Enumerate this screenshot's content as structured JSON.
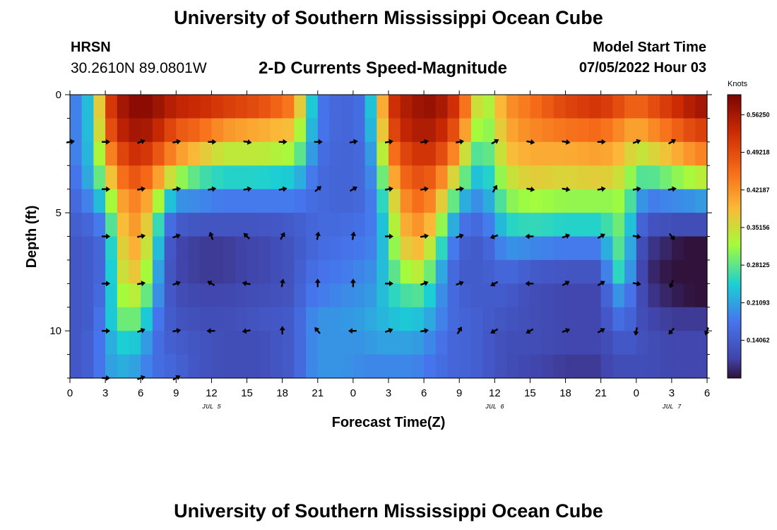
{
  "header": {
    "title": "University of Southern Mississippi Ocean Cube",
    "station_code": "HRSN",
    "station_coords": "30.2610N  89.0801W",
    "plot_title": "2-D Currents Speed-Magnitude",
    "model_start_label": "Model Start Time",
    "model_start_value": "07/05/2022 Hour 03"
  },
  "footer": {
    "title": "University of Southern Mississippi Ocean Cube"
  },
  "chart_data": {
    "type": "heatmap",
    "title": "2-D Currents Speed-Magnitude",
    "xlabel": "Forecast Time(Z)",
    "ylabel": "Depth (ft)",
    "xlim": [
      0,
      54
    ],
    "ylim": [
      12,
      0
    ],
    "x_tick_labels": [
      "0",
      "3",
      "6",
      "9",
      "12",
      "15",
      "18",
      "21",
      "0",
      "3",
      "6",
      "9",
      "12",
      "15",
      "18",
      "21",
      "0",
      "3",
      "6"
    ],
    "date_labels": [
      {
        "text": "JUL 5",
        "hour": 12
      },
      {
        "text": "JUL 6",
        "hour": 36
      },
      {
        "text": "JUL 7",
        "hour": 51
      }
    ],
    "y_ticks": [
      0,
      5,
      10
    ],
    "colorbar": {
      "units": "Knots",
      "ticks": [
        "0.56250",
        "0.49218",
        "0.42187",
        "0.35156",
        "0.28125",
        "0.21093",
        "0.14062"
      ],
      "tick_values": [
        0.5625,
        0.49218,
        0.42187,
        0.35156,
        0.28125,
        0.21093,
        0.14062
      ],
      "range": [
        0.07,
        0.6
      ]
    },
    "depth_layers_ft": [
      0,
      1,
      2,
      3,
      4,
      5,
      6,
      7,
      8,
      9,
      10,
      11,
      12
    ],
    "speed_profiles": [
      [
        0,
        0.17,
        0.17,
        0.17,
        0.16,
        0.15,
        0.14,
        0.13,
        0.13,
        0.13,
        0.13,
        0.13,
        0.13
      ],
      [
        1,
        0.2,
        0.2,
        0.2,
        0.19,
        0.17,
        0.15,
        0.14,
        0.14,
        0.14,
        0.14,
        0.14,
        0.14
      ],
      [
        2,
        0.26,
        0.26,
        0.25,
        0.24,
        0.2,
        0.16,
        0.14,
        0.14,
        0.14,
        0.14,
        0.15,
        0.15
      ],
      [
        3,
        0.48,
        0.45,
        0.4,
        0.33,
        0.26,
        0.2,
        0.17,
        0.17,
        0.18,
        0.2,
        0.2,
        0.2
      ],
      [
        4,
        0.55,
        0.53,
        0.48,
        0.43,
        0.38,
        0.35,
        0.33,
        0.32,
        0.3,
        0.28,
        0.24,
        0.22
      ],
      [
        5,
        0.58,
        0.56,
        0.52,
        0.48,
        0.44,
        0.42,
        0.4,
        0.38,
        0.34,
        0.3,
        0.25,
        0.22
      ],
      [
        6,
        0.59,
        0.57,
        0.53,
        0.48,
        0.43,
        0.41,
        0.39,
        0.37,
        0.33,
        0.28,
        0.23,
        0.2
      ],
      [
        7,
        0.58,
        0.55,
        0.5,
        0.44,
        0.38,
        0.33,
        0.3,
        0.27,
        0.24,
        0.2,
        0.18,
        0.17
      ],
      [
        8,
        0.56,
        0.52,
        0.46,
        0.38,
        0.27,
        0.19,
        0.16,
        0.15,
        0.15,
        0.15,
        0.15,
        0.16
      ],
      [
        9,
        0.54,
        0.48,
        0.42,
        0.32,
        0.2,
        0.14,
        0.11,
        0.11,
        0.12,
        0.13,
        0.14,
        0.15
      ],
      [
        11,
        0.53,
        0.46,
        0.38,
        0.27,
        0.19,
        0.13,
        0.1,
        0.1,
        0.11,
        0.12,
        0.13,
        0.13
      ],
      [
        13,
        0.51,
        0.42,
        0.34,
        0.25,
        0.18,
        0.13,
        0.1,
        0.1,
        0.11,
        0.12,
        0.12,
        0.12
      ],
      [
        16,
        0.49,
        0.4,
        0.34,
        0.25,
        0.18,
        0.13,
        0.11,
        0.11,
        0.12,
        0.13,
        0.12,
        0.12
      ],
      [
        19,
        0.44,
        0.38,
        0.32,
        0.24,
        0.18,
        0.14,
        0.13,
        0.13,
        0.13,
        0.14,
        0.14,
        0.14
      ],
      [
        20,
        0.3,
        0.27,
        0.24,
        0.2,
        0.17,
        0.15,
        0.15,
        0.16,
        0.17,
        0.18,
        0.18,
        0.18
      ],
      [
        21,
        0.18,
        0.18,
        0.17,
        0.16,
        0.16,
        0.16,
        0.16,
        0.17,
        0.18,
        0.2,
        0.2,
        0.2
      ],
      [
        23,
        0.15,
        0.15,
        0.15,
        0.15,
        0.15,
        0.16,
        0.17,
        0.18,
        0.19,
        0.2,
        0.2,
        0.2
      ],
      [
        25,
        0.17,
        0.17,
        0.16,
        0.16,
        0.16,
        0.17,
        0.18,
        0.19,
        0.2,
        0.21,
        0.2,
        0.19
      ],
      [
        26,
        0.3,
        0.28,
        0.25,
        0.22,
        0.2,
        0.19,
        0.19,
        0.2,
        0.21,
        0.22,
        0.21,
        0.19
      ],
      [
        27,
        0.5,
        0.47,
        0.42,
        0.36,
        0.31,
        0.28,
        0.27,
        0.26,
        0.25,
        0.23,
        0.21,
        0.19
      ],
      [
        28,
        0.55,
        0.53,
        0.49,
        0.45,
        0.41,
        0.38,
        0.35,
        0.3,
        0.26,
        0.24,
        0.21,
        0.19
      ],
      [
        29,
        0.56,
        0.55,
        0.51,
        0.48,
        0.45,
        0.42,
        0.39,
        0.34,
        0.28,
        0.24,
        0.21,
        0.19
      ],
      [
        30,
        0.58,
        0.56,
        0.53,
        0.49,
        0.46,
        0.42,
        0.38,
        0.33,
        0.27,
        0.23,
        0.2,
        0.18
      ],
      [
        31,
        0.57,
        0.55,
        0.51,
        0.46,
        0.41,
        0.36,
        0.3,
        0.25,
        0.22,
        0.2,
        0.18,
        0.17
      ],
      [
        32,
        0.55,
        0.52,
        0.47,
        0.4,
        0.33,
        0.26,
        0.21,
        0.18,
        0.17,
        0.17,
        0.16,
        0.16
      ],
      [
        33,
        0.5,
        0.46,
        0.4,
        0.32,
        0.24,
        0.18,
        0.15,
        0.14,
        0.15,
        0.15,
        0.15,
        0.15
      ],
      [
        34,
        0.4,
        0.36,
        0.3,
        0.25,
        0.2,
        0.16,
        0.14,
        0.14,
        0.14,
        0.15,
        0.15,
        0.15
      ],
      [
        35,
        0.3,
        0.28,
        0.25,
        0.22,
        0.19,
        0.16,
        0.14,
        0.14,
        0.14,
        0.14,
        0.14,
        0.14
      ],
      [
        37,
        0.42,
        0.4,
        0.38,
        0.34,
        0.3,
        0.25,
        0.2,
        0.16,
        0.14,
        0.13,
        0.12,
        0.12
      ],
      [
        39,
        0.45,
        0.43,
        0.4,
        0.37,
        0.32,
        0.26,
        0.19,
        0.14,
        0.12,
        0.12,
        0.12,
        0.11
      ],
      [
        42,
        0.5,
        0.45,
        0.4,
        0.36,
        0.31,
        0.25,
        0.18,
        0.13,
        0.11,
        0.11,
        0.11,
        0.1
      ],
      [
        45,
        0.52,
        0.46,
        0.41,
        0.37,
        0.31,
        0.25,
        0.18,
        0.13,
        0.11,
        0.11,
        0.11,
        0.1
      ],
      [
        46,
        0.5,
        0.44,
        0.4,
        0.36,
        0.31,
        0.28,
        0.26,
        0.24,
        0.19,
        0.16,
        0.13,
        0.12
      ],
      [
        47,
        0.48,
        0.42,
        0.38,
        0.34,
        0.32,
        0.3,
        0.29,
        0.27,
        0.21,
        0.17,
        0.14,
        0.12
      ],
      [
        48,
        0.46,
        0.4,
        0.34,
        0.28,
        0.22,
        0.17,
        0.14,
        0.13,
        0.13,
        0.13,
        0.13,
        0.12
      ],
      [
        49,
        0.48,
        0.42,
        0.35,
        0.27,
        0.18,
        0.13,
        0.1,
        0.09,
        0.1,
        0.11,
        0.12,
        0.12
      ],
      [
        51,
        0.52,
        0.46,
        0.39,
        0.3,
        0.19,
        0.12,
        0.08,
        0.07,
        0.08,
        0.1,
        0.11,
        0.11
      ],
      [
        53,
        0.56,
        0.5,
        0.43,
        0.33,
        0.2,
        0.12,
        0.06,
        0.06,
        0.07,
        0.1,
        0.11,
        0.11
      ],
      [
        54,
        0.57,
        0.51,
        0.44,
        0.34,
        0.21,
        0.12,
        0.06,
        0.06,
        0.07,
        0.1,
        0.11,
        0.11
      ]
    ],
    "vectors": [
      {
        "t": 0,
        "d": 2,
        "a": -10
      },
      {
        "t": 3,
        "d": 2,
        "a": 0
      },
      {
        "t": 6,
        "d": 2,
        "a": -20
      },
      {
        "t": 9,
        "d": 2,
        "a": -10
      },
      {
        "t": 12,
        "d": 2,
        "a": 0
      },
      {
        "t": 15,
        "d": 2,
        "a": 10
      },
      {
        "t": 18,
        "d": 2,
        "a": 0
      },
      {
        "t": 21,
        "d": 2,
        "a": 0
      },
      {
        "t": 24,
        "d": 2,
        "a": -10
      },
      {
        "t": 27,
        "d": 2,
        "a": -10
      },
      {
        "t": 30,
        "d": 2,
        "a": -10
      },
      {
        "t": 33,
        "d": 2,
        "a": -10
      },
      {
        "t": 36,
        "d": 2,
        "a": -30
      },
      {
        "t": 39,
        "d": 2,
        "a": 10
      },
      {
        "t": 42,
        "d": 2,
        "a": 10
      },
      {
        "t": 45,
        "d": 2,
        "a": 0
      },
      {
        "t": 48,
        "d": 2,
        "a": -20
      },
      {
        "t": 51,
        "d": 2,
        "a": -30
      },
      {
        "t": 3,
        "d": 4,
        "a": 0
      },
      {
        "t": 6,
        "d": 4,
        "a": -10
      },
      {
        "t": 9,
        "d": 4,
        "a": -10
      },
      {
        "t": 12,
        "d": 4,
        "a": -10
      },
      {
        "t": 15,
        "d": 4,
        "a": -10
      },
      {
        "t": 18,
        "d": 4,
        "a": -10
      },
      {
        "t": 21,
        "d": 4,
        "a": -40
      },
      {
        "t": 24,
        "d": 4,
        "a": -30
      },
      {
        "t": 27,
        "d": 4,
        "a": -10
      },
      {
        "t": 30,
        "d": 4,
        "a": -10
      },
      {
        "t": 33,
        "d": 4,
        "a": -10
      },
      {
        "t": 36,
        "d": 4,
        "a": -60
      },
      {
        "t": 39,
        "d": 4,
        "a": 10
      },
      {
        "t": 42,
        "d": 4,
        "a": 10
      },
      {
        "t": 45,
        "d": 4,
        "a": -10
      },
      {
        "t": 48,
        "d": 4,
        "a": -10
      },
      {
        "t": 51,
        "d": 4,
        "a": -10
      },
      {
        "t": 3,
        "d": 6,
        "a": 0
      },
      {
        "t": 6,
        "d": 6,
        "a": -10
      },
      {
        "t": 9,
        "d": 6,
        "a": -20
      },
      {
        "t": 12,
        "d": 6,
        "a": -110
      },
      {
        "t": 15,
        "d": 6,
        "a": -135
      },
      {
        "t": 18,
        "d": 6,
        "a": -60
      },
      {
        "t": 21,
        "d": 6,
        "a": -80
      },
      {
        "t": 24,
        "d": 6,
        "a": -80
      },
      {
        "t": 27,
        "d": 6,
        "a": 0
      },
      {
        "t": 30,
        "d": 6,
        "a": -10
      },
      {
        "t": 33,
        "d": 6,
        "a": -20
      },
      {
        "t": 36,
        "d": 6,
        "a": 160
      },
      {
        "t": 39,
        "d": 6,
        "a": 180
      },
      {
        "t": 42,
        "d": 6,
        "a": -20
      },
      {
        "t": 45,
        "d": 6,
        "a": -30
      },
      {
        "t": 48,
        "d": 6,
        "a": 10
      },
      {
        "t": 51,
        "d": 6,
        "a": 50
      },
      {
        "t": 3,
        "d": 8,
        "a": 0
      },
      {
        "t": 6,
        "d": 8,
        "a": -10
      },
      {
        "t": 9,
        "d": 8,
        "a": -20
      },
      {
        "t": 12,
        "d": 8,
        "a": -150
      },
      {
        "t": 15,
        "d": 8,
        "a": -170
      },
      {
        "t": 18,
        "d": 8,
        "a": -80
      },
      {
        "t": 21,
        "d": 8,
        "a": -90
      },
      {
        "t": 24,
        "d": 8,
        "a": -90
      },
      {
        "t": 27,
        "d": 8,
        "a": 0
      },
      {
        "t": 30,
        "d": 8,
        "a": -20
      },
      {
        "t": 33,
        "d": 8,
        "a": -20
      },
      {
        "t": 36,
        "d": 8,
        "a": 150
      },
      {
        "t": 39,
        "d": 8,
        "a": 180
      },
      {
        "t": 42,
        "d": 8,
        "a": -30
      },
      {
        "t": 45,
        "d": 8,
        "a": -30
      },
      {
        "t": 48,
        "d": 8,
        "a": 10
      },
      {
        "t": 51,
        "d": 8,
        "a": 110
      },
      {
        "t": 3,
        "d": 10,
        "a": 0
      },
      {
        "t": 6,
        "d": 10,
        "a": -20
      },
      {
        "t": 9,
        "d": 10,
        "a": -10
      },
      {
        "t": 12,
        "d": 10,
        "a": 180
      },
      {
        "t": 15,
        "d": 10,
        "a": 170
      },
      {
        "t": 18,
        "d": 10,
        "a": -90
      },
      {
        "t": 21,
        "d": 10,
        "a": -130
      },
      {
        "t": 24,
        "d": 10,
        "a": 180
      },
      {
        "t": 27,
        "d": 10,
        "a": -20
      },
      {
        "t": 30,
        "d": 10,
        "a": -10
      },
      {
        "t": 33,
        "d": 10,
        "a": -60
      },
      {
        "t": 36,
        "d": 10,
        "a": 150
      },
      {
        "t": 39,
        "d": 10,
        "a": 150
      },
      {
        "t": 42,
        "d": 10,
        "a": -20
      },
      {
        "t": 45,
        "d": 10,
        "a": -30
      },
      {
        "t": 48,
        "d": 10,
        "a": 100
      },
      {
        "t": 51,
        "d": 10,
        "a": 130
      },
      {
        "t": 54,
        "d": 10,
        "a": 110
      },
      {
        "t": 3,
        "d": 12,
        "a": 0
      },
      {
        "t": 6,
        "d": 12,
        "a": -20
      },
      {
        "t": 9,
        "d": 12,
        "a": -30
      }
    ]
  }
}
